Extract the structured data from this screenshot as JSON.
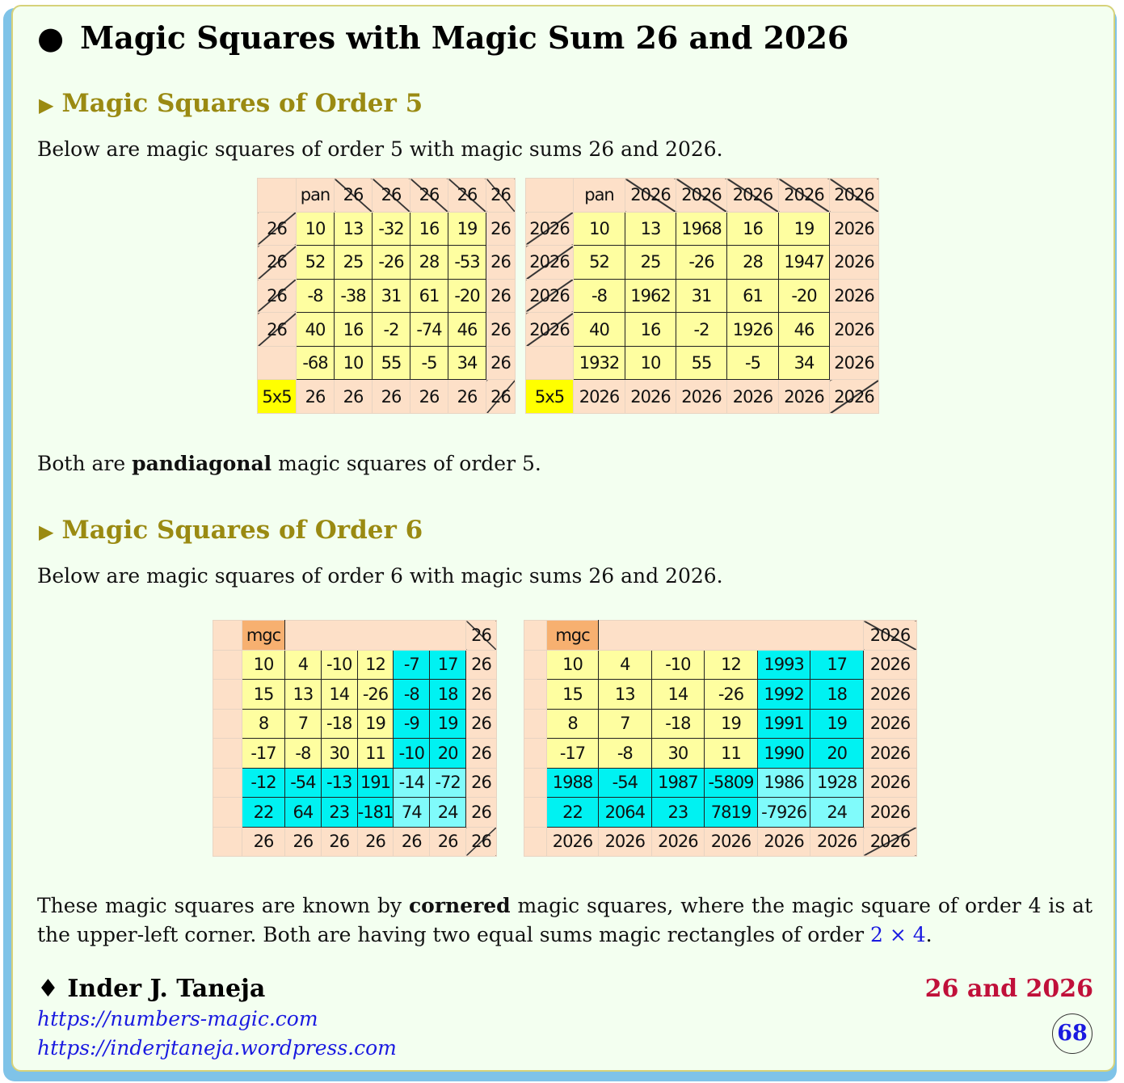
{
  "title": "Magic Squares with Magic Sum 26 and 2026",
  "section5": {
    "heading": "Magic Squares of Order 5",
    "intro": "Below are magic squares of order 5 with magic sums 26 and 2026.",
    "note_pre": "Both are ",
    "note_bold": "pandiagonal",
    "note_post": " magic squares of order 5."
  },
  "section6": {
    "heading": "Magic Squares of Order 6",
    "intro": "Below are magic squares of order 6 with magic sums 26 and 2026.",
    "note_p1": "These magic squares are known by ",
    "note_bold": "cornered",
    "note_p2": " magic squares, where the magic square of order 4 is at the upper-left corner. Both are having two equal sums magic rectangles of order ",
    "note_math": "2 × 4",
    "note_p3": "."
  },
  "tables5": [
    {
      "header": [
        "",
        "pan",
        "26",
        "26",
        "26",
        "26",
        "26"
      ],
      "rows": [
        {
          "label": "26",
          "cells": [
            "10",
            "13",
            "-32",
            "16",
            "19"
          ],
          "sum": "26"
        },
        {
          "label": "26",
          "cells": [
            "52",
            "25",
            "-26",
            "28",
            "-53"
          ],
          "sum": "26"
        },
        {
          "label": "26",
          "cells": [
            "-8",
            "-38",
            "31",
            "61",
            "-20"
          ],
          "sum": "26"
        },
        {
          "label": "26",
          "cells": [
            "40",
            "16",
            "-2",
            "-74",
            "46"
          ],
          "sum": "26"
        },
        {
          "label": "",
          "cells": [
            "-68",
            "10",
            "55",
            "-5",
            "34"
          ],
          "sum": "26"
        }
      ],
      "footer": [
        "5x5",
        "26",
        "26",
        "26",
        "26",
        "26",
        "26"
      ]
    },
    {
      "header": [
        "",
        "pan",
        "2026",
        "2026",
        "2026",
        "2026",
        "2026"
      ],
      "rows": [
        {
          "label": "2026",
          "cells": [
            "10",
            "13",
            "1968",
            "16",
            "19"
          ],
          "sum": "2026"
        },
        {
          "label": "2026",
          "cells": [
            "52",
            "25",
            "-26",
            "28",
            "1947"
          ],
          "sum": "2026"
        },
        {
          "label": "2026",
          "cells": [
            "-8",
            "1962",
            "31",
            "61",
            "-20"
          ],
          "sum": "2026"
        },
        {
          "label": "2026",
          "cells": [
            "40",
            "16",
            "-2",
            "1926",
            "46"
          ],
          "sum": "2026"
        },
        {
          "label": "",
          "cells": [
            "1932",
            "10",
            "55",
            "-5",
            "34"
          ],
          "sum": "2026"
        }
      ],
      "footer": [
        "5x5",
        "2026",
        "2026",
        "2026",
        "2026",
        "2026",
        "2026"
      ]
    }
  ],
  "tables6": [
    {
      "header_tag": "mgc",
      "header_sum": "26",
      "rows": [
        {
          "cells": [
            "10",
            "4",
            "-10",
            "12",
            "-7",
            "17"
          ],
          "sum": "26"
        },
        {
          "cells": [
            "15",
            "13",
            "14",
            "-26",
            "-8",
            "18"
          ],
          "sum": "26"
        },
        {
          "cells": [
            "8",
            "7",
            "-18",
            "19",
            "-9",
            "19"
          ],
          "sum": "26"
        },
        {
          "cells": [
            "-17",
            "-8",
            "30",
            "11",
            "-10",
            "20"
          ],
          "sum": "26"
        },
        {
          "cells": [
            "-12",
            "-54",
            "-13",
            "191",
            "-14",
            "-72"
          ],
          "sum": "26"
        },
        {
          "cells": [
            "22",
            "64",
            "23",
            "-181",
            "74",
            "24"
          ],
          "sum": "26"
        }
      ],
      "footer": [
        "26",
        "26",
        "26",
        "26",
        "26",
        "26",
        "26"
      ]
    },
    {
      "header_tag": "mgc",
      "header_sum": "2026",
      "rows": [
        {
          "cells": [
            "10",
            "4",
            "-10",
            "12",
            "1993",
            "17"
          ],
          "sum": "2026"
        },
        {
          "cells": [
            "15",
            "13",
            "14",
            "-26",
            "1992",
            "18"
          ],
          "sum": "2026"
        },
        {
          "cells": [
            "8",
            "7",
            "-18",
            "19",
            "1991",
            "19"
          ],
          "sum": "2026"
        },
        {
          "cells": [
            "-17",
            "-8",
            "30",
            "11",
            "1990",
            "20"
          ],
          "sum": "2026"
        },
        {
          "cells": [
            "1988",
            "-54",
            "1987",
            "-5809",
            "1986",
            "1928"
          ],
          "sum": "2026"
        },
        {
          "cells": [
            "22",
            "2064",
            "23",
            "7819",
            "-7926",
            "24"
          ],
          "sum": "2026"
        }
      ],
      "footer": [
        "2026",
        "2026",
        "2026",
        "2026",
        "2026",
        "2026",
        "2026"
      ]
    }
  ],
  "colors": {
    "yellow_cell": "#fefea0",
    "cyan_cell": "#00f2f2",
    "light_cyan_cell": "#80fbfb",
    "margin": "#fde0c8",
    "heading": "#9a8a12",
    "accent_red": "#c0103a",
    "link": "#1a1ae0"
  },
  "footer": {
    "author": "Inder J. Taneja",
    "links": [
      "https://numbers-magic.com",
      "https://inderjtaneja.wordpress.com"
    ],
    "topic": "26 and 2026",
    "page_number": "68"
  }
}
